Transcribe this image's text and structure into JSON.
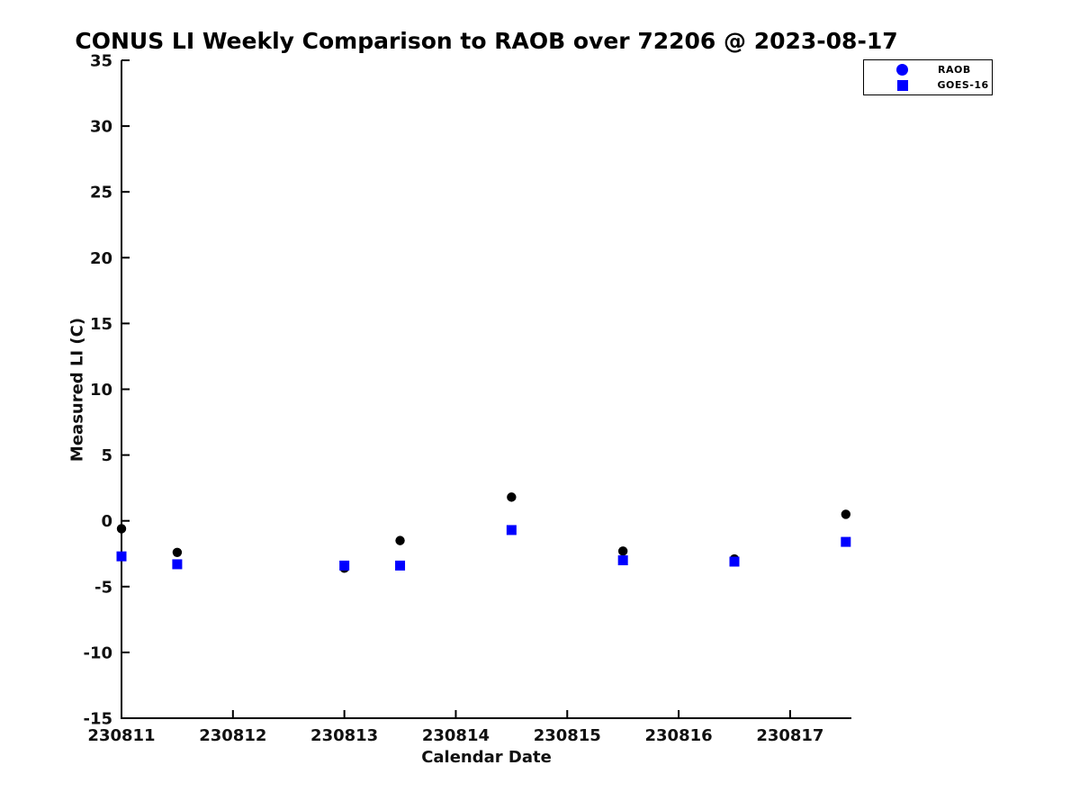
{
  "title": "CONUS LI Weekly Comparison to RAOB over 72206 @ 2023-08-17",
  "colors": {
    "background": "#ffffff",
    "axis": "#000000",
    "raob_marker": "#000000",
    "goes16_marker": "#0000ff",
    "legend_marker_blue": "#0000ff"
  },
  "legend": {
    "items": [
      {
        "label": "RAOB",
        "marker": "circle",
        "color": "#0000ff"
      },
      {
        "label": "GOES-16",
        "marker": "square",
        "color": "#0000ff"
      }
    ]
  },
  "chart_data": {
    "type": "scatter",
    "title": "CONUS LI Weekly Comparison to RAOB over 72206 @ 2023-08-17",
    "xlabel": "Calendar Date",
    "ylabel": "Measured LI (C)",
    "xlim": [
      230811,
      230817.55
    ],
    "ylim": [
      -15,
      35
    ],
    "xticks": [
      230811,
      230812,
      230813,
      230814,
      230815,
      230816,
      230817
    ],
    "yticks": [
      -15,
      -10,
      -5,
      0,
      5,
      10,
      15,
      20,
      25,
      30,
      35
    ],
    "grid": false,
    "legend_position": "top-right",
    "x": [
      230811.0,
      230811.5,
      230813.0,
      230813.5,
      230814.5,
      230815.5,
      230816.5,
      230817.5
    ],
    "series": [
      {
        "name": "RAOB",
        "marker": "circle",
        "color": "#000000",
        "values": [
          -0.6,
          -2.4,
          -3.6,
          -1.5,
          1.8,
          -2.3,
          -2.9,
          0.5
        ]
      },
      {
        "name": "GOES-16",
        "marker": "square",
        "color": "#0000ff",
        "values": [
          -2.7,
          -3.3,
          -3.4,
          -3.4,
          -0.7,
          -3.0,
          -3.1,
          -1.6
        ]
      }
    ]
  }
}
